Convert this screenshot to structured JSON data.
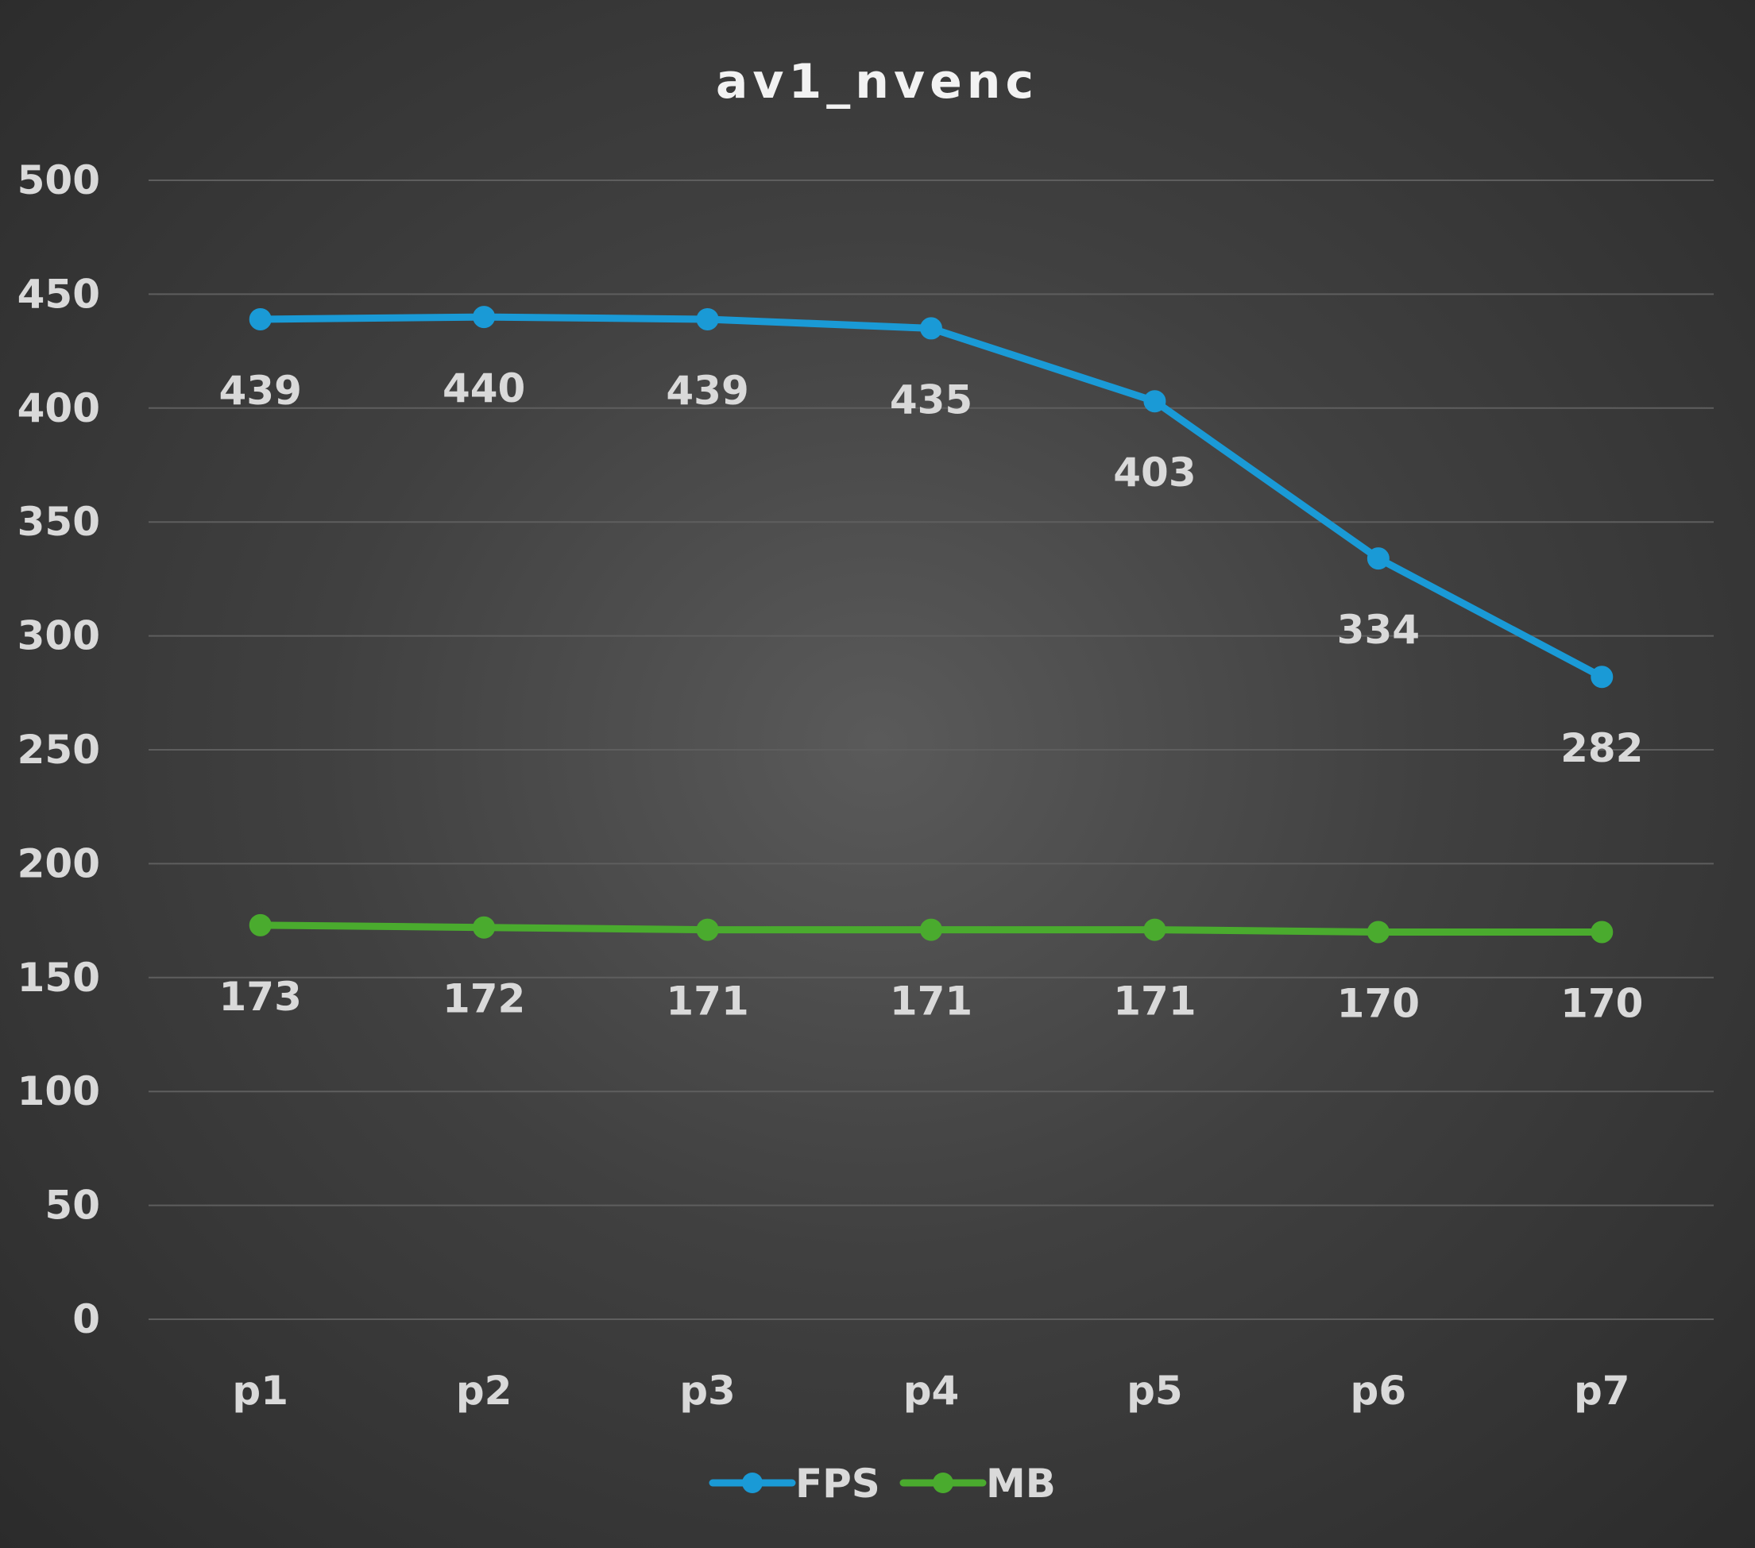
{
  "chart_data": {
    "type": "line",
    "title": "av1_nvenc",
    "xlabel": "",
    "ylabel": "",
    "categories": [
      "p1",
      "p2",
      "p3",
      "p4",
      "p5",
      "p6",
      "p7"
    ],
    "ylim": [
      0,
      500
    ],
    "yticks": [
      "0",
      "50",
      "100",
      "150",
      "200",
      "250",
      "300",
      "350",
      "400",
      "450",
      "500"
    ],
    "grid": true,
    "legend_position": "bottom",
    "series": [
      {
        "name": "FPS",
        "color": "#1a9ad6",
        "values": [
          439,
          440,
          439,
          435,
          403,
          334,
          282
        ],
        "labels": [
          "439",
          "440",
          "439",
          "435",
          "403",
          "334",
          "282"
        ]
      },
      {
        "name": "MB",
        "color": "#4aab2e",
        "values": [
          173,
          172,
          171,
          171,
          171,
          170,
          170
        ],
        "labels": [
          "173",
          "172",
          "171",
          "171",
          "171",
          "170",
          "170"
        ]
      }
    ]
  }
}
